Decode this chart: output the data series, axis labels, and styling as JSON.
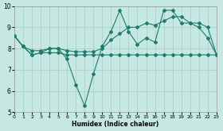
{
  "xlabel": "Humidex (Indice chaleur)",
  "background_color": "#c5e8e3",
  "grid_color": "#aed4cc",
  "line_color": "#1e7b6e",
  "xlim": [
    0,
    23
  ],
  "ylim": [
    5,
    10
  ],
  "xticks": [
    0,
    1,
    2,
    3,
    4,
    5,
    6,
    7,
    8,
    9,
    10,
    11,
    12,
    13,
    14,
    15,
    16,
    17,
    18,
    19,
    20,
    21,
    22,
    23
  ],
  "yticks": [
    5,
    6,
    7,
    8,
    9,
    10
  ],
  "series": [
    {
      "x": [
        0,
        1,
        2,
        3,
        4,
        5,
        6,
        7,
        8,
        9,
        10,
        11,
        12,
        13,
        14,
        15,
        16,
        17,
        18,
        19,
        20,
        21,
        22,
        23
      ],
      "y": [
        8.6,
        8.1,
        7.7,
        7.8,
        8.0,
        8.0,
        7.5,
        6.3,
        5.3,
        6.8,
        8.1,
        8.8,
        9.8,
        8.8,
        8.2,
        8.5,
        8.3,
        9.8,
        9.8,
        9.2,
        9.2,
        9.0,
        8.5,
        7.7
      ]
    },
    {
      "x": [
        0,
        1,
        2,
        3,
        4,
        5,
        6,
        7,
        8,
        9,
        10,
        11,
        12,
        13,
        14,
        15,
        16,
        17,
        18,
        19,
        20,
        21,
        22,
        23
      ],
      "y": [
        8.6,
        8.1,
        7.7,
        7.8,
        7.8,
        7.8,
        7.7,
        7.7,
        7.7,
        7.7,
        7.7,
        7.7,
        7.7,
        7.7,
        7.7,
        7.7,
        7.7,
        7.7,
        7.7,
        7.7,
        7.7,
        7.7,
        7.7,
        7.7
      ]
    },
    {
      "x": [
        0,
        1,
        2,
        3,
        4,
        5,
        6,
        7,
        8,
        9,
        10,
        11,
        12,
        13,
        14,
        15,
        16,
        17,
        18,
        19,
        20,
        21,
        22,
        23
      ],
      "y": [
        8.6,
        8.1,
        7.9,
        7.9,
        8.0,
        8.0,
        7.9,
        7.85,
        7.85,
        7.85,
        8.0,
        8.4,
        8.7,
        9.0,
        9.0,
        9.2,
        9.1,
        9.3,
        9.5,
        9.5,
        9.2,
        9.2,
        9.0,
        7.7
      ]
    }
  ]
}
